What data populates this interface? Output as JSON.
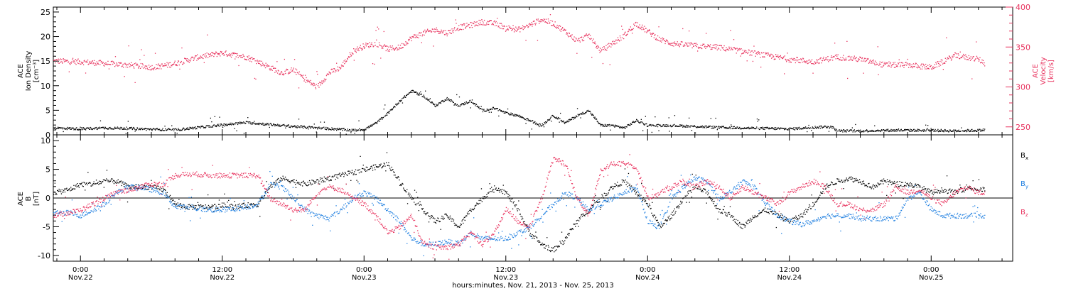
{
  "chart_data": [
    {
      "type": "scatter",
      "panel": "top",
      "title": "",
      "xlabel": "hours:minutes, Nov. 21, 2013 - Nov. 25, 2013",
      "x_range_hours_from_nov22_0000": [
        -2.3,
        78.9
      ],
      "x_tick_labels": [
        {
          "time": "0:00",
          "date": "Nov.22"
        },
        {
          "time": "12:00",
          "date": "Nov.22"
        },
        {
          "time": "0:00",
          "date": "Nov.23"
        },
        {
          "time": "12:00",
          "date": "Nov.23"
        },
        {
          "time": "0:00",
          "date": "Nov.24"
        },
        {
          "time": "12:00",
          "date": "Nov.24"
        },
        {
          "time": "0:00",
          "date": "Nov.25"
        }
      ],
      "left_axis": {
        "label_lines": [
          "ACE",
          "Ion Density",
          "[cm⁻³]"
        ],
        "ylim": [
          0,
          26
        ],
        "ticks": [
          0,
          5,
          10,
          15,
          20,
          25
        ],
        "color": "#000000"
      },
      "right_axis": {
        "label_lines": [
          "ACE",
          "Velocity",
          "[km/s]"
        ],
        "ylim": [
          240,
          400
        ],
        "ticks": [
          250,
          300,
          350,
          400
        ],
        "color": "#e8325e"
      },
      "series": [
        {
          "color": "#000000",
          "axis": "left",
          "x_hours": [
            -2.3,
            0,
            2,
            4,
            6,
            8,
            10,
            12,
            14,
            16,
            18,
            20,
            22,
            23,
            24,
            25,
            26,
            27,
            28,
            29,
            30,
            31,
            32,
            33,
            34,
            35,
            36,
            37,
            38,
            39,
            40,
            41,
            42,
            43,
            44,
            45,
            46,
            47,
            48,
            50,
            52,
            54,
            56,
            58,
            60,
            62,
            63.5,
            64,
            66,
            68,
            70,
            72,
            74,
            76,
            76.5
          ],
          "values": [
            1.5,
            1.3,
            1.5,
            1.4,
            1.2,
            1.1,
            1.6,
            2.1,
            2.6,
            2.2,
            1.8,
            1.5,
            1.2,
            1.0,
            1.2,
            2.5,
            4.5,
            7.0,
            9.0,
            8.0,
            6.0,
            7.5,
            6.0,
            7.0,
            5.0,
            5.5,
            4.5,
            4.0,
            3.0,
            2.0,
            4.0,
            2.5,
            4.0,
            5.0,
            2.0,
            2.0,
            1.5,
            3.0,
            2.0,
            2.0,
            1.8,
            1.6,
            1.5,
            1.4,
            1.3,
            1.6,
            1.8,
            0.9,
            0.9,
            1.0,
            1.0,
            1.0,
            0.9,
            1.0,
            1.1
          ]
        },
        {
          "color": "#e8325e",
          "axis": "right",
          "x_hours": [
            -2.3,
            0,
            2,
            4,
            6,
            7,
            8,
            10,
            12,
            14,
            15,
            16,
            17,
            18,
            19,
            20,
            21,
            22,
            23,
            24,
            25,
            26,
            27,
            28,
            29,
            30,
            31,
            32,
            33,
            34,
            35,
            36,
            37,
            38,
            39,
            40,
            41,
            42,
            43,
            44,
            45,
            46,
            47,
            48,
            49,
            50,
            52,
            54,
            56,
            58,
            60,
            62,
            64,
            66,
            68,
            70,
            72,
            74,
            76,
            76.5
          ],
          "values": [
            333,
            332,
            330,
            328,
            325,
            327,
            330,
            338,
            343,
            338,
            332,
            325,
            318,
            322,
            310,
            300,
            318,
            325,
            345,
            352,
            355,
            348,
            350,
            362,
            368,
            372,
            368,
            375,
            378,
            382,
            380,
            375,
            372,
            378,
            385,
            380,
            370,
            358,
            365,
            345,
            355,
            365,
            380,
            370,
            360,
            355,
            352,
            350,
            345,
            340,
            335,
            332,
            338,
            335,
            328,
            328,
            325,
            340,
            335,
            330
          ]
        }
      ]
    },
    {
      "type": "scatter",
      "panel": "bottom",
      "title": "",
      "x_range_hours_from_nov22_0000": [
        -2.3,
        78.9
      ],
      "left_axis": {
        "label_lines": [
          "ACE",
          "B",
          "[nT]"
        ],
        "ylim": [
          -11,
          11
        ],
        "ticks": [
          -10,
          -5,
          0,
          5,
          10
        ],
        "color": "#000000"
      },
      "zero_line": true,
      "legend": [
        {
          "label": "B",
          "sub": "x",
          "color": "#000000"
        },
        {
          "label": "B",
          "sub": "y",
          "color": "#1f7fe0"
        },
        {
          "label": "B",
          "sub": "z",
          "color": "#e8325e"
        }
      ],
      "legend_position": "right",
      "series": [
        {
          "name": "Bx",
          "color": "#000000",
          "x_hours": [
            -2.3,
            -1,
            0,
            1,
            2,
            3,
            4,
            5,
            6,
            7,
            8,
            9,
            10,
            11,
            12,
            13,
            14,
            15,
            16,
            17,
            18,
            19,
            20,
            21,
            22,
            23,
            24,
            25,
            26,
            27,
            28,
            29,
            30,
            31,
            32,
            33,
            34,
            35,
            36,
            37,
            38,
            39,
            40,
            41,
            42,
            43,
            44,
            45,
            46,
            47,
            48,
            49,
            50,
            51,
            52,
            53,
            54,
            55,
            56,
            57,
            58,
            59,
            60,
            61,
            62,
            63,
            64,
            65,
            66,
            67,
            68,
            69,
            70,
            71,
            72,
            73,
            74,
            75,
            76,
            76.5
          ],
          "values": [
            1,
            1.5,
            2.5,
            2.5,
            3,
            3,
            2,
            2,
            2,
            1.5,
            -1,
            -1.5,
            -1.5,
            -1.5,
            -1.2,
            -1.5,
            -1.2,
            -1,
            2,
            3.5,
            3,
            2.5,
            3,
            3.5,
            4,
            4.5,
            5,
            5.5,
            6,
            3,
            0,
            -2,
            -4,
            -3,
            -5,
            -2,
            0,
            2,
            1,
            -2,
            -6,
            -8,
            -9,
            -7,
            -4,
            -2,
            0,
            2,
            3,
            1,
            -1,
            -5,
            -3,
            0,
            2,
            1,
            -2,
            -3,
            -5,
            -3,
            -2,
            -3,
            -4,
            -3,
            -1,
            2,
            3,
            3.5,
            3,
            2,
            3,
            2.5,
            2.5,
            2,
            1,
            1.5,
            1,
            2,
            1.5,
            1.5
          ]
        },
        {
          "name": "By",
          "color": "#1f7fe0",
          "x_hours": [
            -2.3,
            -1,
            0,
            1,
            2,
            3,
            4,
            5,
            6,
            7,
            8,
            9,
            10,
            11,
            12,
            13,
            14,
            15,
            16,
            17,
            18,
            19,
            20,
            21,
            22,
            23,
            24,
            25,
            26,
            27,
            28,
            29,
            30,
            31,
            32,
            33,
            34,
            35,
            36,
            37,
            38,
            39,
            40,
            41,
            42,
            43,
            44,
            45,
            46,
            47,
            48,
            49,
            50,
            51,
            52,
            53,
            54,
            55,
            56,
            57,
            58,
            59,
            60,
            61,
            62,
            63,
            64,
            65,
            66,
            67,
            68,
            69,
            70,
            71,
            72,
            73,
            74,
            75,
            76,
            76.5
          ],
          "values": [
            -2.5,
            -2.5,
            -3,
            -2,
            -1,
            1,
            2,
            2,
            1.5,
            1,
            -1.5,
            -1.5,
            -1.8,
            -2,
            -2,
            -1.8,
            -1.5,
            -1,
            2.5,
            2,
            0,
            -2,
            -3,
            -3.5,
            -2,
            0,
            1,
            0,
            -2,
            -4,
            -7,
            -8,
            -8,
            -7.5,
            -8,
            -6,
            -7,
            -7,
            -7,
            -6,
            -5,
            -3,
            -1,
            1,
            0,
            -2,
            -1,
            0,
            1,
            2,
            -4,
            -5,
            0,
            2,
            3.5,
            3,
            0,
            1,
            3,
            2,
            -1,
            -3,
            -4,
            -4.5,
            -4,
            -3,
            -3,
            -3,
            -3.5,
            -3.5,
            -3.5,
            -3.5,
            0,
            1,
            -2,
            -3,
            -3,
            -3,
            -3,
            -3
          ]
        },
        {
          "name": "Bz",
          "color": "#e8325e",
          "x_hours": [
            -2.3,
            -1,
            0,
            1,
            2,
            3,
            4,
            5,
            6,
            7,
            8,
            9,
            10,
            11,
            12,
            13,
            14,
            15,
            16,
            17,
            18,
            19,
            20,
            21,
            22,
            23,
            24,
            25,
            26,
            27,
            28,
            29,
            30,
            31,
            32,
            33,
            34,
            35,
            36,
            37,
            38,
            39,
            40,
            41,
            42,
            43,
            44,
            45,
            46,
            47,
            48,
            49,
            50,
            51,
            52,
            53,
            54,
            55,
            56,
            57,
            58,
            59,
            60,
            61,
            62,
            63,
            64,
            65,
            66,
            67,
            68,
            69,
            70,
            71,
            72,
            73,
            74,
            75,
            76,
            76.5
          ],
          "values": [
            -3,
            -2.5,
            -2,
            -1,
            0,
            1,
            1.5,
            2,
            2.5,
            2.5,
            4,
            4.2,
            4.2,
            4,
            4,
            4,
            4,
            4,
            0,
            -1,
            -2,
            -2,
            1,
            2,
            1.5,
            0,
            -1,
            -3,
            -6,
            -5,
            -3,
            -8,
            -8.5,
            -8.5,
            -8,
            -6,
            -8,
            -6,
            -2,
            -4,
            -5,
            0,
            7,
            6,
            0,
            -3,
            5,
            6,
            6,
            5.5,
            0,
            1,
            2,
            3,
            2,
            3,
            2,
            0,
            2,
            1,
            0,
            -1,
            1,
            2,
            3,
            2,
            -1,
            -1,
            -2,
            -2,
            -1,
            2,
            1,
            1.5,
            0,
            -1,
            1,
            2,
            1,
            1
          ]
        }
      ]
    }
  ],
  "colors": {
    "density": "#000000",
    "velocity": "#e8325e",
    "bx": "#000000",
    "by": "#1f7fe0",
    "bz": "#e8325e"
  }
}
